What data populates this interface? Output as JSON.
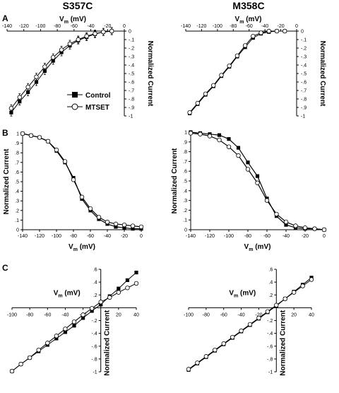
{
  "figure": {
    "col_titles": [
      "S357C",
      "M358C"
    ],
    "panel_labels": [
      "A",
      "B",
      "C"
    ],
    "xlabel_main": "V",
    "xlabel_sub": "m",
    "xlabel_unit": " (mV)",
    "ylabel": "Normalized Current",
    "legend": [
      "Control",
      "MTSET"
    ]
  },
  "chart_data": [
    {
      "id": "A-S357C",
      "type": "line",
      "panel": "A",
      "title": "S357C",
      "xlim": [
        -140,
        0
      ],
      "ylim": [
        -1,
        0
      ],
      "xticks": [
        -140,
        -120,
        -100,
        -80,
        -60,
        -40,
        -20,
        0
      ],
      "yticks": [
        0,
        -0.1,
        -0.2,
        -0.3,
        -0.4,
        -0.5,
        -0.6,
        -0.7,
        -0.8,
        -0.9,
        -1
      ],
      "series": [
        {
          "name": "Control",
          "marker": "square",
          "x": [
            -135,
            -125,
            -115,
            -105,
            -95,
            -85,
            -75,
            -65,
            -55,
            -45,
            -35,
            -25,
            -15
          ],
          "y": [
            -0.96,
            -0.83,
            -0.72,
            -0.6,
            -0.47,
            -0.35,
            -0.25,
            -0.17,
            -0.11,
            -0.07,
            -0.035,
            -0.01,
            0
          ]
        },
        {
          "name": "MTSET",
          "marker": "circle",
          "x": [
            -135,
            -125,
            -115,
            -105,
            -95,
            -85,
            -75,
            -65,
            -55,
            -45,
            -35,
            -25,
            -15
          ],
          "y": [
            -0.91,
            -0.78,
            -0.66,
            -0.54,
            -0.42,
            -0.31,
            -0.22,
            -0.15,
            -0.1,
            -0.06,
            -0.03,
            -0.01,
            0
          ]
        }
      ]
    },
    {
      "id": "A-M358C",
      "type": "line",
      "panel": "A",
      "title": "M358C",
      "xlim": [
        -140,
        0
      ],
      "ylim": [
        -1,
        0
      ],
      "xticks": [
        -140,
        -120,
        -100,
        -80,
        -60,
        -40,
        -20,
        0
      ],
      "yticks": [
        0,
        -0.1,
        -0.2,
        -0.3,
        -0.4,
        -0.5,
        -0.6,
        -0.7,
        -0.8,
        -0.9,
        -1
      ],
      "series": [
        {
          "name": "Control",
          "marker": "square",
          "x": [
            -135,
            -125,
            -115,
            -105,
            -95,
            -85,
            -75,
            -65,
            -55,
            -45,
            -35,
            -25,
            -15
          ],
          "y": [
            -0.97,
            -0.86,
            -0.75,
            -0.65,
            -0.53,
            -0.42,
            -0.3,
            -0.19,
            -0.08,
            -0.03,
            -0.01,
            0,
            0
          ]
        },
        {
          "name": "MTSET",
          "marker": "circle",
          "x": [
            -135,
            -125,
            -115,
            -105,
            -95,
            -85,
            -75,
            -65,
            -55,
            -45,
            -35,
            -25,
            -15
          ],
          "y": [
            -0.96,
            -0.85,
            -0.74,
            -0.64,
            -0.52,
            -0.41,
            -0.29,
            -0.17,
            -0.06,
            -0.02,
            0,
            0,
            0
          ]
        }
      ]
    },
    {
      "id": "B-S357C",
      "type": "line",
      "panel": "B",
      "xlim": [
        -140,
        0
      ],
      "ylim": [
        0,
        1
      ],
      "xticks": [
        -140,
        -120,
        -100,
        -80,
        -60,
        -40,
        -20,
        0
      ],
      "yticks": [
        0,
        0.1,
        0.2,
        0.3,
        0.4,
        0.5,
        0.6,
        0.7,
        0.8,
        0.9,
        1
      ],
      "series": [
        {
          "name": "Control",
          "marker": "square",
          "x": [
            -140,
            -130,
            -120,
            -110,
            -100,
            -90,
            -80,
            -70,
            -60,
            -50,
            -40,
            -30,
            -20,
            -10,
            0
          ],
          "y": [
            1,
            0.98,
            0.96,
            0.92,
            0.82,
            0.7,
            0.54,
            0.32,
            0.2,
            0.11,
            0.06,
            0.03,
            0.02,
            0.01,
            0.01
          ]
        },
        {
          "name": "MTSET",
          "marker": "circle",
          "x": [
            -140,
            -130,
            -120,
            -110,
            -100,
            -90,
            -80,
            -70,
            -60,
            -50,
            -40,
            -30,
            -20,
            -10,
            0
          ],
          "y": [
            1,
            0.98,
            0.96,
            0.92,
            0.83,
            0.71,
            0.52,
            0.34,
            0.22,
            0.13,
            0.08,
            0.06,
            0.05,
            0.04,
            0.03
          ]
        }
      ]
    },
    {
      "id": "B-M358C",
      "type": "line",
      "panel": "B",
      "xlim": [
        -140,
        0
      ],
      "ylim": [
        0,
        1
      ],
      "xticks": [
        -140,
        -120,
        -100,
        -80,
        -60,
        -40,
        -20,
        0
      ],
      "yticks": [
        0,
        0.1,
        0.2,
        0.3,
        0.4,
        0.5,
        0.6,
        0.7,
        0.8,
        0.9,
        1
      ],
      "series": [
        {
          "name": "Control",
          "marker": "square",
          "x": [
            -140,
            -130,
            -120,
            -110,
            -100,
            -90,
            -80,
            -70,
            -60,
            -50,
            -40,
            -30,
            -20,
            -10,
            0
          ],
          "y": [
            1,
            0.99,
            0.98,
            0.97,
            0.93,
            0.84,
            0.69,
            0.55,
            0.32,
            0.14,
            0.05,
            0.02,
            0.01,
            0.01,
            0
          ]
        },
        {
          "name": "MTSET",
          "marker": "circle",
          "x": [
            -140,
            -130,
            -120,
            -110,
            -100,
            -90,
            -80,
            -70,
            -60,
            -50,
            -40,
            -30,
            -20,
            -10,
            0
          ],
          "y": [
            0.99,
            0.98,
            0.96,
            0.92,
            0.85,
            0.76,
            0.62,
            0.48,
            0.3,
            0.16,
            0.08,
            0.04,
            0.02,
            0.01,
            0
          ]
        }
      ]
    },
    {
      "id": "C-S357C",
      "type": "line",
      "panel": "C",
      "xlim": [
        -100,
        40
      ],
      "ylim": [
        -1,
        0.6
      ],
      "xticks": [
        -100,
        -80,
        -60,
        -40,
        -20,
        20,
        40
      ],
      "yticks": [
        0.6,
        0.4,
        0.2,
        -0.2,
        -0.4,
        -0.6,
        -0.8,
        -1
      ],
      "series": [
        {
          "name": "Control",
          "marker": "square",
          "x": [
            -100,
            -90,
            -80,
            -70,
            -60,
            -50,
            -40,
            -30,
            -20,
            -10,
            0,
            10,
            20,
            30,
            40
          ],
          "y": [
            -0.99,
            -0.88,
            -0.78,
            -0.68,
            -0.58,
            -0.48,
            -0.38,
            -0.28,
            -0.16,
            -0.05,
            0.05,
            0.18,
            0.3,
            0.43,
            0.55
          ]
        },
        {
          "name": "MTSET",
          "marker": "circle",
          "x": [
            -100,
            -90,
            -80,
            -70,
            -60,
            -50,
            -40,
            -30,
            -20,
            -10,
            0,
            10,
            20,
            30,
            40
          ],
          "y": [
            -0.99,
            -0.88,
            -0.78,
            -0.66,
            -0.55,
            -0.44,
            -0.33,
            -0.22,
            -0.11,
            -0.01,
            0.09,
            0.16,
            0.24,
            0.31,
            0.38
          ]
        }
      ]
    },
    {
      "id": "C-M358C",
      "type": "line",
      "panel": "C",
      "xlim": [
        -100,
        40
      ],
      "ylim": [
        -1,
        0.6
      ],
      "xticks": [
        -100,
        -80,
        -60,
        -40,
        -20,
        20,
        40
      ],
      "yticks": [
        0.6,
        0.4,
        0.2,
        -0.2,
        -0.4,
        -0.6,
        -0.8,
        -1
      ],
      "series": [
        {
          "name": "Control",
          "marker": "square",
          "x": [
            -100,
            -90,
            -80,
            -70,
            -60,
            -50,
            -40,
            -30,
            -20,
            -10,
            0,
            10,
            20,
            30,
            40
          ],
          "y": [
            -0.97,
            -0.87,
            -0.77,
            -0.67,
            -0.57,
            -0.47,
            -0.37,
            -0.27,
            -0.17,
            -0.07,
            0.03,
            0.14,
            0.25,
            0.36,
            0.47
          ]
        },
        {
          "name": "MTSET",
          "marker": "circle",
          "x": [
            -100,
            -90,
            -80,
            -70,
            -60,
            -50,
            -40,
            -30,
            -20,
            -10,
            0,
            10,
            20,
            30,
            40
          ],
          "y": [
            -0.96,
            -0.86,
            -0.76,
            -0.66,
            -0.56,
            -0.46,
            -0.36,
            -0.26,
            -0.16,
            -0.06,
            0.04,
            0.14,
            0.24,
            0.34,
            0.44
          ]
        }
      ]
    }
  ]
}
